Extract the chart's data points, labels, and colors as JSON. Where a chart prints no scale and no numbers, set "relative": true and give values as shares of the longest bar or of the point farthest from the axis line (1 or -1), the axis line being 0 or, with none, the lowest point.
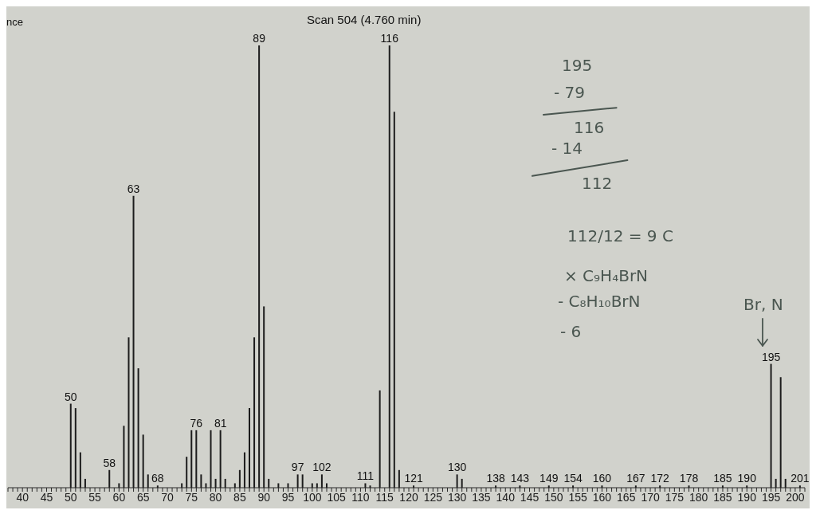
{
  "chart_data": {
    "type": "bar",
    "title": "Scan 504 (4.760 min)",
    "ylabel": "nce",
    "relative": true,
    "x": [
      50,
      51,
      52,
      53,
      58,
      60,
      61,
      62,
      63,
      64,
      65,
      66,
      68,
      73,
      74,
      75,
      76,
      77,
      78,
      79,
      80,
      81,
      82,
      84,
      85,
      86,
      87,
      88,
      89,
      90,
      91,
      93,
      95,
      97,
      98,
      100,
      101,
      102,
      103,
      111,
      112,
      114,
      116,
      117,
      118,
      121,
      130,
      131,
      138,
      143,
      149,
      154,
      160,
      167,
      172,
      178,
      185,
      190,
      195,
      196,
      197,
      198,
      201
    ],
    "series": [
      {
        "color": "#1c1c1c",
        "values": [
          0.19,
          0.18,
          0.08,
          0.02,
          0.04,
          0.01,
          0.14,
          0.34,
          0.66,
          0.27,
          0.12,
          0.03,
          0.005,
          0.01,
          0.07,
          0.13,
          0.13,
          0.03,
          0.01,
          0.13,
          0.02,
          0.13,
          0.02,
          0.01,
          0.04,
          0.08,
          0.18,
          0.34,
          1,
          0.41,
          0.02,
          0.01,
          0.01,
          0.03,
          0.03,
          0.01,
          0.01,
          0.03,
          0.01,
          0.01,
          0.005,
          0.22,
          1,
          0.85,
          0.04,
          0.005,
          0.03,
          0.02,
          0.005,
          0.005,
          0.005,
          0.005,
          0.005,
          0.005,
          0.005,
          0.005,
          0.005,
          0.005,
          0.28,
          0.02,
          0.25,
          0.02,
          0.005
        ]
      }
    ],
    "xlim": [
      37,
      202
    ],
    "xticks": [
      {
        "value": 37,
        "label": null
      },
      {
        "value": 38,
        "label": null
      },
      {
        "value": 39,
        "label": null
      },
      40,
      {
        "value": 41,
        "label": null
      },
      {
        "value": 42,
        "label": null
      },
      {
        "value": 43,
        "label": null
      },
      {
        "value": 44,
        "label": null
      },
      45,
      {
        "value": 46,
        "label": null
      },
      {
        "value": 47,
        "label": null
      },
      {
        "value": 48,
        "label": null
      },
      {
        "value": 49,
        "label": null
      },
      50,
      {
        "value": 51,
        "label": null
      },
      {
        "value": 52,
        "label": null
      },
      {
        "value": 53,
        "label": null
      },
      {
        "value": 54,
        "label": null
      },
      55,
      {
        "value": 56,
        "label": null
      },
      {
        "value": 57,
        "label": null
      },
      {
        "value": 58,
        "label": null
      },
      {
        "value": 59,
        "label": null
      },
      60,
      {
        "value": 61,
        "label": null
      },
      {
        "value": 62,
        "label": null
      },
      {
        "value": 63,
        "label": null
      },
      {
        "value": 64,
        "label": null
      },
      65,
      {
        "value": 66,
        "label": null
      },
      {
        "value": 67,
        "label": null
      },
      {
        "value": 68,
        "label": null
      },
      {
        "value": 69,
        "label": null
      },
      70,
      {
        "value": 71,
        "label": null
      },
      {
        "value": 72,
        "label": null
      },
      {
        "value": 73,
        "label": null
      },
      {
        "value": 74,
        "label": null
      },
      75,
      {
        "value": 76,
        "label": null
      },
      {
        "value": 77,
        "label": null
      },
      {
        "value": 78,
        "label": null
      },
      {
        "value": 79,
        "label": null
      },
      80,
      {
        "value": 81,
        "label": null
      },
      {
        "value": 82,
        "label": null
      },
      {
        "value": 83,
        "label": null
      },
      {
        "value": 84,
        "label": null
      },
      85,
      {
        "value": 86,
        "label": null
      },
      {
        "value": 87,
        "label": null
      },
      {
        "value": 88,
        "label": null
      },
      {
        "value": 89,
        "label": null
      },
      90,
      {
        "value": 91,
        "label": null
      },
      {
        "value": 92,
        "label": null
      },
      {
        "value": 93,
        "label": null
      },
      {
        "value": 94,
        "label": null
      },
      95,
      {
        "value": 96,
        "label": null
      },
      {
        "value": 97,
        "label": null
      },
      {
        "value": 98,
        "label": null
      },
      {
        "value": 99,
        "label": null
      },
      100,
      {
        "value": 101,
        "label": null
      },
      {
        "value": 102,
        "label": null
      },
      {
        "value": 103,
        "label": null
      },
      {
        "value": 104,
        "label": null
      },
      105,
      {
        "value": 106,
        "label": null
      },
      {
        "value": 107,
        "label": null
      },
      {
        "value": 108,
        "label": null
      },
      {
        "value": 109,
        "label": null
      },
      110,
      {
        "value": 111,
        "label": null
      },
      {
        "value": 112,
        "label": null
      },
      {
        "value": 113,
        "label": null
      },
      {
        "value": 114,
        "label": null
      },
      115,
      {
        "value": 116,
        "label": null
      },
      {
        "value": 117,
        "label": null
      },
      {
        "value": 118,
        "label": null
      },
      {
        "value": 119,
        "label": null
      },
      120,
      {
        "value": 121,
        "label": null
      },
      {
        "value": 122,
        "label": null
      },
      {
        "value": 123,
        "label": null
      },
      {
        "value": 124,
        "label": null
      },
      125,
      {
        "value": 126,
        "label": null
      },
      {
        "value": 127,
        "label": null
      },
      {
        "value": 128,
        "label": null
      },
      {
        "value": 129,
        "label": null
      },
      130,
      {
        "value": 131,
        "label": null
      },
      {
        "value": 132,
        "label": null
      },
      {
        "value": 133,
        "label": null
      },
      {
        "value": 134,
        "label": null
      },
      135,
      {
        "value": 136,
        "label": null
      },
      {
        "value": 137,
        "label": null
      },
      {
        "value": 138,
        "label": null
      },
      {
        "value": 139,
        "label": null
      },
      140,
      {
        "value": 141,
        "label": null
      },
      {
        "value": 142,
        "label": null
      },
      {
        "value": 143,
        "label": null
      },
      {
        "value": 144,
        "label": null
      },
      145,
      {
        "value": 146,
        "label": null
      },
      {
        "value": 147,
        "label": null
      },
      {
        "value": 148,
        "label": null
      },
      {
        "value": 149,
        "label": null
      },
      150,
      {
        "value": 151,
        "label": null
      },
      {
        "value": 152,
        "label": null
      },
      {
        "value": 153,
        "label": null
      },
      {
        "value": 154,
        "label": null
      },
      155,
      {
        "value": 156,
        "label": null
      },
      {
        "value": 157,
        "label": null
      },
      {
        "value": 158,
        "label": null
      },
      {
        "value": 159,
        "label": null
      },
      160,
      {
        "value": 161,
        "label": null
      },
      {
        "value": 162,
        "label": null
      },
      {
        "value": 163,
        "label": null
      },
      {
        "value": 164,
        "label": null
      },
      165,
      {
        "value": 166,
        "label": null
      },
      {
        "value": 167,
        "label": null
      },
      {
        "value": 168,
        "label": null
      },
      {
        "value": 169,
        "label": null
      },
      170,
      {
        "value": 171,
        "label": null
      },
      {
        "value": 172,
        "label": null
      },
      {
        "value": 173,
        "label": null
      },
      {
        "value": 174,
        "label": null
      },
      175,
      {
        "value": 176,
        "label": null
      },
      {
        "value": 177,
        "label": null
      },
      {
        "value": 178,
        "label": null
      },
      {
        "value": 179,
        "label": null
      },
      180,
      {
        "value": 181,
        "label": null
      },
      {
        "value": 182,
        "label": null
      },
      {
        "value": 183,
        "label": null
      },
      {
        "value": 184,
        "label": null
      },
      185,
      {
        "value": 186,
        "label": null
      },
      {
        "value": 187,
        "label": null
      },
      {
        "value": 188,
        "label": null
      },
      {
        "value": 189,
        "label": null
      },
      190,
      {
        "value": 191,
        "label": null
      },
      {
        "value": 192,
        "label": null
      },
      {
        "value": 193,
        "label": null
      },
      {
        "value": 194,
        "label": null
      },
      195,
      {
        "value": 196,
        "label": null
      },
      {
        "value": 197,
        "label": null
      },
      {
        "value": 198,
        "label": null
      },
      {
        "value": 199,
        "label": null
      },
      200,
      {
        "value": 201,
        "label": null
      },
      {
        "value": 202,
        "label": null
      }
    ],
    "annotations": [
      {
        "text": "50",
        "x": 50,
        "y": 0.19
      },
      {
        "text": "58",
        "x": 58,
        "y": 0.04
      },
      {
        "text": "63",
        "x": 63,
        "y": 0.66
      },
      {
        "text": "68",
        "x": 68,
        "y": 0.005
      },
      {
        "text": "76",
        "x": 76,
        "y": 0.13
      },
      {
        "text": "81",
        "x": 81,
        "y": 0.13
      },
      {
        "text": "89",
        "x": 89,
        "y": 1
      },
      {
        "text": "97",
        "x": 97,
        "y": 0.03
      },
      {
        "text": "102",
        "x": 102,
        "y": 0.03
      },
      {
        "text": "111",
        "x": 111,
        "y": 0.01
      },
      {
        "text": "116",
        "x": 116,
        "y": 1
      },
      {
        "text": "121",
        "x": 121,
        "y": 0.005
      },
      {
        "text": "130",
        "x": 130,
        "y": 0.03
      },
      {
        "text": "138",
        "x": 138,
        "y": 0.005
      },
      {
        "text": "143",
        "x": 143,
        "y": 0.005
      },
      {
        "text": "149",
        "x": 149,
        "y": 0.005
      },
      {
        "text": "154",
        "x": 154,
        "y": 0.005
      },
      {
        "text": "160",
        "x": 160,
        "y": 0.005
      },
      {
        "text": "167",
        "x": 167,
        "y": 0.005
      },
      {
        "text": "172",
        "x": 172,
        "y": 0.005
      },
      {
        "text": "178",
        "x": 178,
        "y": 0.005
      },
      {
        "text": "185",
        "x": 185,
        "y": 0.005
      },
      {
        "text": "190",
        "x": 190,
        "y": 0.005
      },
      {
        "text": "195",
        "x": 195,
        "y": 0.28
      },
      {
        "text": "201",
        "x": 201,
        "y": 0.005
      },
      "195",
      "- 79",
      "116",
      "- 14",
      "112",
      "112/12 = 9 C",
      "× C₉H₄BrN",
      "- C₈H₁₀BrN",
      "- 6",
      "Br, N"
    ]
  }
}
